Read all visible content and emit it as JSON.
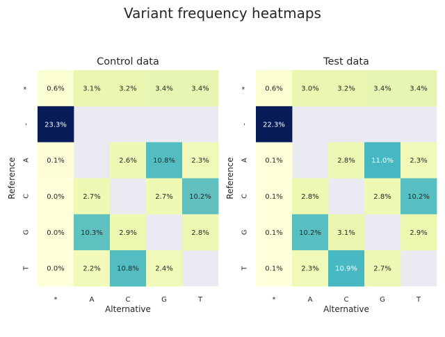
{
  "figure": {
    "title": "Variant frequency heatmaps"
  },
  "chart_data": [
    {
      "type": "heatmap",
      "title": "Control data",
      "xlabel": "Alternative",
      "ylabel": "Reference",
      "x_categories": [
        "*",
        "A",
        "C",
        "G",
        "T"
      ],
      "y_categories": [
        "*",
        "-",
        "A",
        "C",
        "G",
        "T"
      ],
      "values": [
        [
          0.6,
          3.1,
          3.2,
          3.4,
          3.4
        ],
        [
          23.3,
          null,
          null,
          null,
          null
        ],
        [
          0.1,
          null,
          2.6,
          10.8,
          2.3
        ],
        [
          0.0,
          2.7,
          null,
          2.7,
          10.2
        ],
        [
          0.0,
          10.3,
          2.9,
          null,
          2.8
        ],
        [
          0.0,
          2.2,
          10.8,
          2.4,
          null
        ]
      ],
      "labels": [
        [
          "0.6%",
          "3.1%",
          "3.2%",
          "3.4%",
          "3.4%"
        ],
        [
          "23.3%",
          "",
          "",
          "",
          ""
        ],
        [
          "0.1%",
          "",
          "2.6%",
          "10.8%",
          "2.3%"
        ],
        [
          "0.0%",
          "2.7%",
          "",
          "2.7%",
          "10.2%"
        ],
        [
          "0.0%",
          "10.3%",
          "2.9%",
          "",
          "2.8%"
        ],
        [
          "0.0%",
          "2.2%",
          "10.8%",
          "2.4%",
          ""
        ]
      ],
      "colorbar": false
    },
    {
      "type": "heatmap",
      "title": "Test data",
      "xlabel": "Alternative",
      "ylabel": "Reference",
      "x_categories": [
        "*",
        "A",
        "C",
        "G",
        "T"
      ],
      "y_categories": [
        "*",
        "-",
        "A",
        "C",
        "G",
        "T"
      ],
      "values": [
        [
          0.6,
          3.0,
          3.2,
          3.4,
          3.4
        ],
        [
          22.3,
          null,
          null,
          null,
          null
        ],
        [
          0.1,
          null,
          2.8,
          11.0,
          2.3
        ],
        [
          0.1,
          2.8,
          null,
          2.8,
          10.2
        ],
        [
          0.1,
          10.2,
          3.1,
          null,
          2.9
        ],
        [
          0.1,
          2.3,
          10.9,
          2.7,
          null
        ]
      ],
      "labels": [
        [
          "0.6%",
          "3.0%",
          "3.2%",
          "3.4%",
          "3.4%"
        ],
        [
          "22.3%",
          "",
          "",
          "",
          ""
        ],
        [
          "0.1%",
          "",
          "2.8%",
          "11.0%",
          "2.3%"
        ],
        [
          "0.1%",
          "2.8%",
          "",
          "2.8%",
          "10.2%"
        ],
        [
          "0.1%",
          "10.2%",
          "3.1%",
          "",
          "2.9%"
        ],
        [
          "0.1%",
          "2.3%",
          "10.9%",
          "2.7%",
          ""
        ]
      ],
      "colorbar": false
    }
  ],
  "colors": {
    "missing": "#eaeaf2",
    "colormap": "YlGnBu",
    "text_dark": "#262626",
    "text_light": "#ffffff"
  }
}
